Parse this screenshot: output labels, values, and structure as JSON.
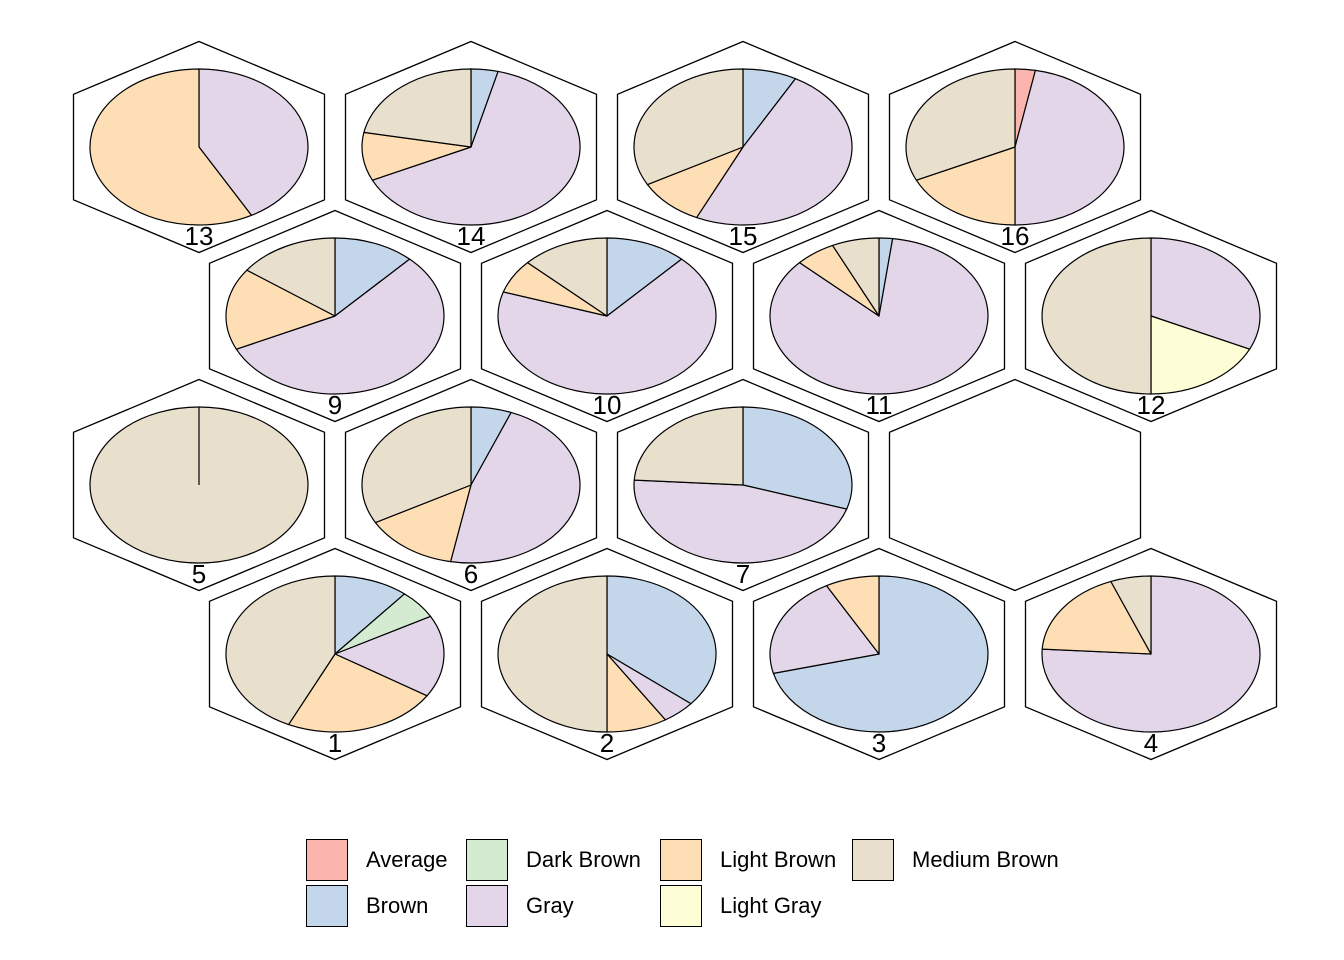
{
  "chart_data": {
    "type": "pie",
    "colors": {
      "Average": "#FBB4AE",
      "Brown": "#C4D6EA",
      "Dark Brown": "#D4EBD2",
      "Gray": "#E3D6E9",
      "Light Brown": "#FDDEB5",
      "Light Gray": "#FDFDD6",
      "Medium Brown": "#E8E0CC"
    },
    "legend": {
      "position": "bottom",
      "entries": [
        "Average",
        "Brown",
        "Dark Brown",
        "Gray",
        "Light Brown",
        "Light Gray",
        "Medium Brown"
      ]
    },
    "cells": [
      {
        "id": "1",
        "slices": [
          {
            "category": "Brown",
            "value": 0.11
          },
          {
            "category": "Dark Brown",
            "value": 0.06
          },
          {
            "category": "Gray",
            "value": 0.17
          },
          {
            "category": "Light Brown",
            "value": 0.23
          },
          {
            "category": "Medium Brown",
            "value": 0.43
          }
        ]
      },
      {
        "id": "2",
        "slices": [
          {
            "category": "Brown",
            "value": 0.36
          },
          {
            "category": "Gray",
            "value": 0.05
          },
          {
            "category": "Light Brown",
            "value": 0.09
          },
          {
            "category": "Medium Brown",
            "value": 0.5
          }
        ]
      },
      {
        "id": "3",
        "slices": [
          {
            "category": "Brown",
            "value": 0.71
          },
          {
            "category": "Gray",
            "value": 0.21
          },
          {
            "category": "Light Brown",
            "value": 0.08
          }
        ]
      },
      {
        "id": "4",
        "slices": [
          {
            "category": "Gray",
            "value": 0.76
          },
          {
            "category": "Light Brown",
            "value": 0.18
          },
          {
            "category": "Medium Brown",
            "value": 0.06
          }
        ]
      },
      {
        "id": "5",
        "slices": [
          {
            "category": "Medium Brown",
            "value": 1.0
          }
        ]
      },
      {
        "id": "6",
        "slices": [
          {
            "category": "Brown",
            "value": 0.06
          },
          {
            "category": "Gray",
            "value": 0.47
          },
          {
            "category": "Light Brown",
            "value": 0.14
          },
          {
            "category": "Medium Brown",
            "value": 0.33
          }
        ]
      },
      {
        "id": "7",
        "slices": [
          {
            "category": "Brown",
            "value": 0.3
          },
          {
            "category": "Gray",
            "value": 0.46
          },
          {
            "category": "Medium Brown",
            "value": 0.24
          }
        ]
      },
      {
        "id": "9",
        "slices": [
          {
            "category": "Brown",
            "value": 0.12
          },
          {
            "category": "Gray",
            "value": 0.56
          },
          {
            "category": "Light Brown",
            "value": 0.17
          },
          {
            "category": "Medium Brown",
            "value": 0.15
          }
        ]
      },
      {
        "id": "10",
        "slices": [
          {
            "category": "Brown",
            "value": 0.12
          },
          {
            "category": "Gray",
            "value": 0.68
          },
          {
            "category": "Light Brown",
            "value": 0.07
          },
          {
            "category": "Medium Brown",
            "value": 0.13
          }
        ]
      },
      {
        "id": "11",
        "slices": [
          {
            "category": "Brown",
            "value": 0.02
          },
          {
            "category": "Gray",
            "value": 0.85
          },
          {
            "category": "Light Brown",
            "value": 0.06
          },
          {
            "category": "Medium Brown",
            "value": 0.07
          }
        ]
      },
      {
        "id": "12",
        "slices": [
          {
            "category": "Gray",
            "value": 0.32
          },
          {
            "category": "Light Gray",
            "value": 0.18
          },
          {
            "category": "Medium Brown",
            "value": 0.5
          }
        ]
      },
      {
        "id": "13",
        "slices": [
          {
            "category": "Gray",
            "value": 0.42
          },
          {
            "category": "Light Brown",
            "value": 0.58
          }
        ]
      },
      {
        "id": "14",
        "slices": [
          {
            "category": "Brown",
            "value": 0.04
          },
          {
            "category": "Gray",
            "value": 0.64
          },
          {
            "category": "Light Brown",
            "value": 0.1
          },
          {
            "category": "Medium Brown",
            "value": 0.22
          }
        ]
      },
      {
        "id": "15",
        "slices": [
          {
            "category": "Brown",
            "value": 0.08
          },
          {
            "category": "Gray",
            "value": 0.49
          },
          {
            "category": "Light Brown",
            "value": 0.1
          },
          {
            "category": "Medium Brown",
            "value": 0.33
          }
        ]
      },
      {
        "id": "16",
        "slices": [
          {
            "category": "Average",
            "value": 0.03
          },
          {
            "category": "Gray",
            "value": 0.47
          },
          {
            "category": "Light Brown",
            "value": 0.18
          },
          {
            "category": "Medium Brown",
            "value": 0.32
          }
        ]
      }
    ]
  }
}
